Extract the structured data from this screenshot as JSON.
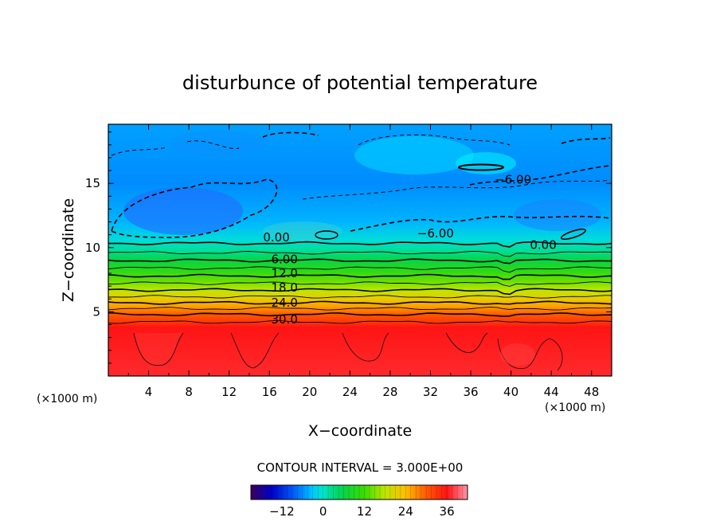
{
  "chart_data": {
    "type": "heatmap",
    "title": "disturbunce of potential temperature",
    "xlabel": "X−coordinate",
    "ylabel": "Z−coordinate",
    "x_unit_label": "(×1000 m)",
    "y_unit_label": "(×1000 m)",
    "xlim": [
      0,
      50
    ],
    "ylim": [
      0,
      19.6
    ],
    "x_ticks": [
      4,
      8,
      12,
      16,
      20,
      24,
      28,
      32,
      36,
      40,
      44,
      48
    ],
    "y_ticks": [
      5,
      10,
      15
    ],
    "contour_interval_text": "CONTOUR INTERVAL = 3.000E+00",
    "contour_interval": 3,
    "contour_labels": [
      {
        "text": "30.0",
        "x": 17.5,
        "z": 4.4
      },
      {
        "text": "24.0",
        "x": 17.5,
        "z": 5.7
      },
      {
        "text": "18.0",
        "x": 17.5,
        "z": 6.9
      },
      {
        "text": "12.0",
        "x": 17.5,
        "z": 8.0
      },
      {
        "text": "6.00",
        "x": 17.5,
        "z": 9.1
      },
      {
        "text": "0.00",
        "x": 16.7,
        "z": 10.8
      },
      {
        "text": "−6.00",
        "x": 32.5,
        "z": 11.1
      },
      {
        "text": "0.00",
        "x": 43.2,
        "z": 10.2
      },
      {
        "text": "−6.00",
        "x": 40.2,
        "z": 15.3
      }
    ],
    "vertical_profile": [
      {
        "z": 0.0,
        "value": 37
      },
      {
        "z": 3.8,
        "value": 36
      },
      {
        "z": 4.2,
        "value": 33
      },
      {
        "z": 4.8,
        "value": 30
      },
      {
        "z": 5.4,
        "value": 26
      },
      {
        "z": 6.0,
        "value": 22
      },
      {
        "z": 6.7,
        "value": 18
      },
      {
        "z": 7.4,
        "value": 14
      },
      {
        "z": 8.2,
        "value": 10
      },
      {
        "z": 9.0,
        "value": 6
      },
      {
        "z": 9.8,
        "value": 2
      },
      {
        "z": 10.6,
        "value": -1
      },
      {
        "z": 12.0,
        "value": -4
      },
      {
        "z": 15.0,
        "value": -6
      },
      {
        "z": 19.6,
        "value": -5
      }
    ],
    "colorbar": {
      "ticks": [
        -12,
        0,
        12,
        24,
        36
      ],
      "tick_labels": [
        "−12",
        "0",
        "12",
        "24",
        "36"
      ],
      "range": [
        -21,
        42
      ],
      "colormap": "rainbow (purple–blue–cyan–green–yellow–red–pink)"
    }
  }
}
